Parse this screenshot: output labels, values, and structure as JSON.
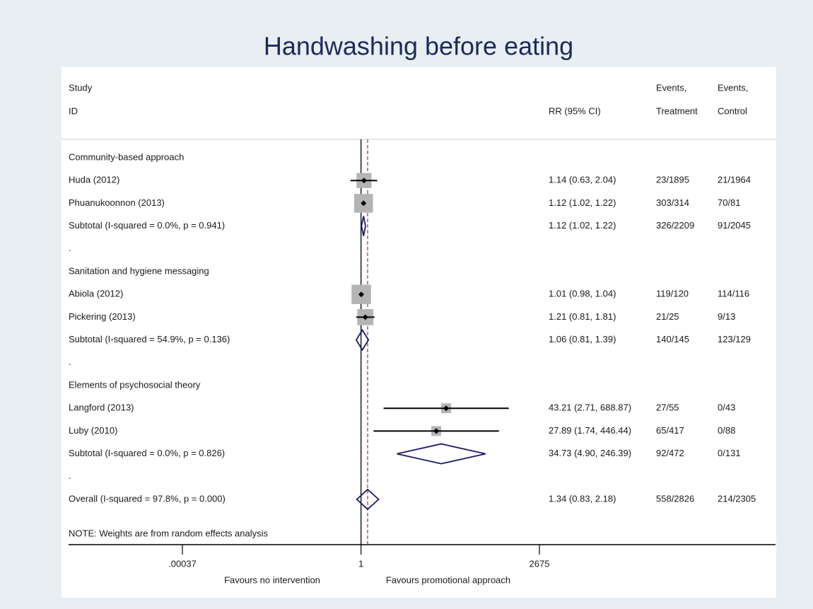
{
  "chart_data": {
    "type": "forest",
    "title": "Handwashing before eating",
    "header": {
      "study": "Study",
      "id": "ID",
      "rr": "RR (95% CI)",
      "events1": "Events,",
      "treatment": "Treatment",
      "events2": "Events,",
      "control": "Control"
    },
    "log_scale": true,
    "xlim": [
      0.00037,
      2675
    ],
    "xticks": [
      {
        "value": 0.00037,
        "label": ".00037"
      },
      1,
      2675
    ],
    "xlabel_left": "Favours no intervention",
    "xlabel_right": "Favours promotional approach",
    "note": "NOTE: Weights are from random effects analysis",
    "box_color": "#b4b4b4",
    "diamond_color": "#1a1a6e",
    "overall_line_color": "#8b3a3a",
    "rows": [
      {
        "kind": "group",
        "label": "Community-based approach"
      },
      {
        "kind": "study",
        "label": "Huda (2012)",
        "rr": 1.14,
        "lo": 0.63,
        "hi": 2.04,
        "rr_label": "1.14 (0.63, 2.04)",
        "treatment": "23/1895",
        "control": "21/1964"
      },
      {
        "kind": "study",
        "label": "Phuanukoonnon (2013)",
        "rr": 1.12,
        "lo": 1.02,
        "hi": 1.22,
        "rr_label": "1.12 (1.02, 1.22)",
        "treatment": "303/314",
        "control": "70/81"
      },
      {
        "kind": "subtotal",
        "label": "Subtotal  (I-squared = 0.0%, p = 0.941)",
        "rr": 1.12,
        "lo": 1.02,
        "hi": 1.22,
        "rr_label": "1.12 (1.02, 1.22)",
        "treatment": "326/2209",
        "control": "91/2045"
      },
      {
        "kind": "spacer",
        "label": "."
      },
      {
        "kind": "group",
        "label": "Sanitation and hygiene messaging"
      },
      {
        "kind": "study",
        "label": "Abiola (2012)",
        "rr": 1.01,
        "lo": 0.98,
        "hi": 1.04,
        "rr_label": "1.01 (0.98, 1.04)",
        "treatment": "119/120",
        "control": "114/116"
      },
      {
        "kind": "study",
        "label": "Pickering (2013)",
        "rr": 1.21,
        "lo": 0.81,
        "hi": 1.81,
        "rr_label": "1.21 (0.81, 1.81)",
        "treatment": "21/25",
        "control": "9/13"
      },
      {
        "kind": "subtotal",
        "label": "Subtotal  (I-squared = 54.9%, p = 0.136)",
        "rr": 1.06,
        "lo": 0.81,
        "hi": 1.39,
        "rr_label": "1.06 (0.81, 1.39)",
        "treatment": "140/145",
        "control": "123/129"
      },
      {
        "kind": "spacer",
        "label": "."
      },
      {
        "kind": "group",
        "label": "Elements of psychosocial theory"
      },
      {
        "kind": "study",
        "label": "Langford (2013)",
        "rr": 43.21,
        "lo": 2.71,
        "hi": 688.87,
        "rr_label": "43.21 (2.71, 688.87)",
        "treatment": "27/55",
        "control": "0/43"
      },
      {
        "kind": "study",
        "label": "Luby (2010)",
        "rr": 27.89,
        "lo": 1.74,
        "hi": 446.44,
        "rr_label": "27.89 (1.74, 446.44)",
        "treatment": "65/417",
        "control": "0/88"
      },
      {
        "kind": "subtotal",
        "label": "Subtotal  (I-squared = 0.0%, p = 0.826)",
        "rr": 34.73,
        "lo": 4.9,
        "hi": 246.39,
        "rr_label": "34.73 (4.90, 246.39)",
        "treatment": "92/472",
        "control": "0/131"
      },
      {
        "kind": "spacer",
        "label": "."
      },
      {
        "kind": "overall",
        "label": "Overall  (I-squared = 97.8%, p = 0.000)",
        "rr": 1.34,
        "lo": 0.83,
        "hi": 2.18,
        "rr_label": "1.34 (0.83, 2.18)",
        "treatment": "558/2826",
        "control": "214/2305"
      }
    ]
  }
}
